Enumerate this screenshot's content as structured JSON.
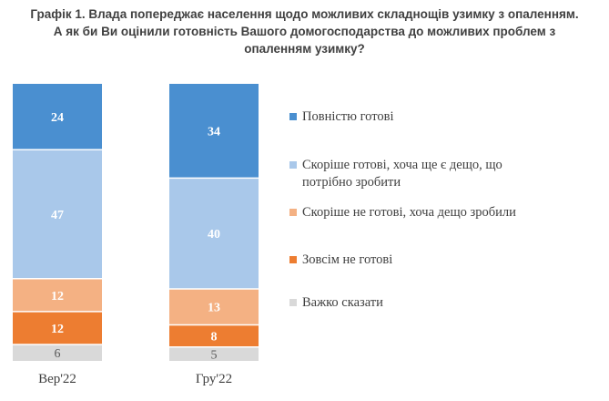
{
  "title_lines": [
    "Графік 1. Влада попереджає населення щодо можливих складнощів узимку з опаленням.",
    "А як би Ви оцінили готовність Вашого домогосподарства до можливих проблем з",
    "опаленням узимку?"
  ],
  "chart_data": {
    "type": "bar",
    "stacked": true,
    "percent_stacked": true,
    "title": "Графік 1. Влада попереджає населення щодо можливих складнощів узимку з опаленням. А як би Ви оцінили готовність Вашого домогосподарства до можливих проблем з опаленням узимку?",
    "categories": [
      "Вер'22",
      "Гру'22"
    ],
    "series": [
      {
        "name": "Повністю готові",
        "values": [
          24,
          34
        ],
        "color": "#4a8fd0",
        "label_color": "#ffffff"
      },
      {
        "name": "Скоріше готові, хоча ще є дещо, що потрібно зробити",
        "values": [
          47,
          40
        ],
        "color": "#a9c8ea",
        "label_color": "#ffffff"
      },
      {
        "name": "Скоріше не готові, хоча дещо зробили",
        "values": [
          12,
          13
        ],
        "color": "#f4b183",
        "label_color": "#ffffff"
      },
      {
        "name": "Зовсім не готові",
        "values": [
          12,
          8
        ],
        "color": "#ed7d31",
        "label_color": "#ffffff"
      },
      {
        "name": "Важко сказати",
        "values": [
          6,
          5
        ],
        "color": "#d9d9d9",
        "label_color": "#595959"
      }
    ],
    "legend": {
      "placement": "right",
      "entries": [
        {
          "lines": [
            "Повністю готові"
          ]
        },
        {
          "lines": [
            "Скоріше готові, хоча ще є дещо, що",
            "потрібно зробити"
          ]
        },
        {
          "lines": [
            "Скоріше не готові, хоча дещо зробили"
          ]
        },
        {
          "lines": [
            "Зовсім не готові"
          ]
        },
        {
          "lines": [
            "Важко сказати"
          ]
        }
      ]
    },
    "ylim": [
      0,
      100
    ],
    "grid": false,
    "xlabel": "",
    "ylabel": ""
  }
}
